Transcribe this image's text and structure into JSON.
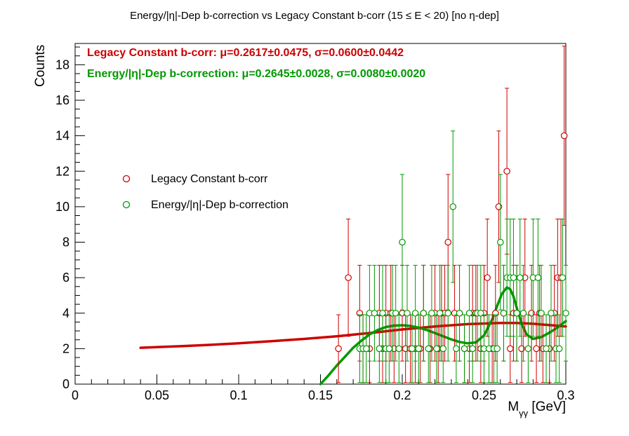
{
  "chart_data": {
    "type": "scatter",
    "title": "Energy/|η|-Dep b-correction vs Legacy Constant b-corr   (15 ≤ E < 20)   [no η-dep]",
    "xlabel": "Mγγ [GeV]",
    "ylabel": "Counts",
    "xlim": [
      0,
      0.3
    ],
    "ylim": [
      0,
      19.2
    ],
    "x_ticks": [
      "0",
      "0.05",
      "0.1",
      "0.15",
      "0.2",
      "0.25",
      "0.3"
    ],
    "y_ticks": [
      "0",
      "2",
      "4",
      "6",
      "8",
      "10",
      "12",
      "14",
      "16",
      "18"
    ],
    "legend_placement": "middle-left",
    "stats": [
      {
        "text": "Legacy Constant b-corr: μ=0.2617±0.0475,  σ=0.0600±0.0442",
        "color": "#cc0000"
      },
      {
        "text": "Energy/|η|-Dep b-correction: μ=0.2645±0.0028,  σ=0.0080±0.0020",
        "color": "#009900"
      }
    ],
    "series": [
      {
        "name": "Legacy Constant b-corr",
        "color": "#cc0000",
        "marker": "open-circle",
        "x": [
          0.161,
          0.167,
          0.174,
          0.176,
          0.18,
          0.186,
          0.188,
          0.19,
          0.193,
          0.195,
          0.2,
          0.202,
          0.205,
          0.208,
          0.211,
          0.213,
          0.217,
          0.22,
          0.222,
          0.224,
          0.226,
          0.228,
          0.232,
          0.235,
          0.238,
          0.241,
          0.243,
          0.245,
          0.248,
          0.25,
          0.252,
          0.255,
          0.257,
          0.259,
          0.262,
          0.264,
          0.266,
          0.268,
          0.27,
          0.273,
          0.275,
          0.279,
          0.282,
          0.284,
          0.286,
          0.29,
          0.293,
          0.295,
          0.297,
          0.299
        ],
        "y": [
          2,
          6,
          4,
          2,
          2,
          4,
          2,
          4,
          4,
          2,
          4,
          2,
          2,
          2,
          2,
          4,
          2,
          4,
          2,
          4,
          4,
          8,
          4,
          4,
          2,
          2,
          4,
          4,
          2,
          4,
          6,
          2,
          4,
          10,
          4,
          12,
          2,
          4,
          4,
          2,
          6,
          4,
          2,
          4,
          2,
          2,
          4,
          6,
          6,
          14
        ]
      },
      {
        "name": "Energy/|η|-Dep b-correction",
        "color": "#009900",
        "marker": "open-circle",
        "x": [
          0.174,
          0.176,
          0.178,
          0.18,
          0.183,
          0.186,
          0.188,
          0.19,
          0.192,
          0.194,
          0.196,
          0.198,
          0.2,
          0.203,
          0.206,
          0.208,
          0.21,
          0.213,
          0.216,
          0.218,
          0.221,
          0.223,
          0.225,
          0.228,
          0.231,
          0.233,
          0.235,
          0.238,
          0.241,
          0.243,
          0.246,
          0.248,
          0.25,
          0.253,
          0.256,
          0.258,
          0.26,
          0.262,
          0.264,
          0.266,
          0.268,
          0.27,
          0.272,
          0.274,
          0.277,
          0.28,
          0.283,
          0.285,
          0.288,
          0.291,
          0.294,
          0.296,
          0.298,
          0.3
        ],
        "y": [
          2,
          2,
          2,
          4,
          4,
          2,
          4,
          2,
          2,
          4,
          4,
          2,
          8,
          4,
          2,
          4,
          2,
          4,
          2,
          4,
          2,
          4,
          2,
          4,
          10,
          2,
          4,
          2,
          4,
          2,
          4,
          4,
          2,
          2,
          2,
          2,
          8,
          4,
          6,
          6,
          6,
          4,
          6,
          4,
          2,
          6,
          6,
          4,
          2,
          4,
          2,
          2,
          6,
          4
        ]
      }
    ],
    "fits": [
      {
        "name": "Legacy Constant b-corr fit",
        "color": "#cc0000",
        "x": [
          0.04,
          0.06,
          0.08,
          0.1,
          0.12,
          0.14,
          0.16,
          0.18,
          0.2,
          0.22,
          0.24,
          0.26,
          0.27,
          0.28,
          0.29,
          0.3
        ],
        "y": [
          2.05,
          2.12,
          2.2,
          2.3,
          2.42,
          2.55,
          2.7,
          2.88,
          3.08,
          3.25,
          3.38,
          3.45,
          3.45,
          3.4,
          3.33,
          3.25
        ]
      },
      {
        "name": "Energy/|η|-Dep b-correction fit",
        "color": "#009900",
        "x": [
          0.15,
          0.155,
          0.16,
          0.165,
          0.17,
          0.175,
          0.18,
          0.185,
          0.19,
          0.195,
          0.2,
          0.205,
          0.21,
          0.215,
          0.22,
          0.225,
          0.23,
          0.235,
          0.24,
          0.245,
          0.25,
          0.255,
          0.258,
          0.261,
          0.264,
          0.266,
          0.268,
          0.27,
          0.273,
          0.276,
          0.28,
          0.285,
          0.29,
          0.295,
          0.3
        ],
        "y": [
          0,
          0.5,
          1.05,
          1.55,
          2.05,
          2.45,
          2.8,
          3.05,
          3.22,
          3.3,
          3.32,
          3.28,
          3.18,
          3.05,
          2.88,
          2.7,
          2.52,
          2.38,
          2.3,
          2.35,
          2.75,
          3.65,
          4.4,
          5.1,
          5.45,
          5.35,
          4.95,
          4.3,
          3.4,
          2.8,
          2.55,
          2.65,
          2.9,
          3.2,
          3.55
        ]
      }
    ]
  }
}
